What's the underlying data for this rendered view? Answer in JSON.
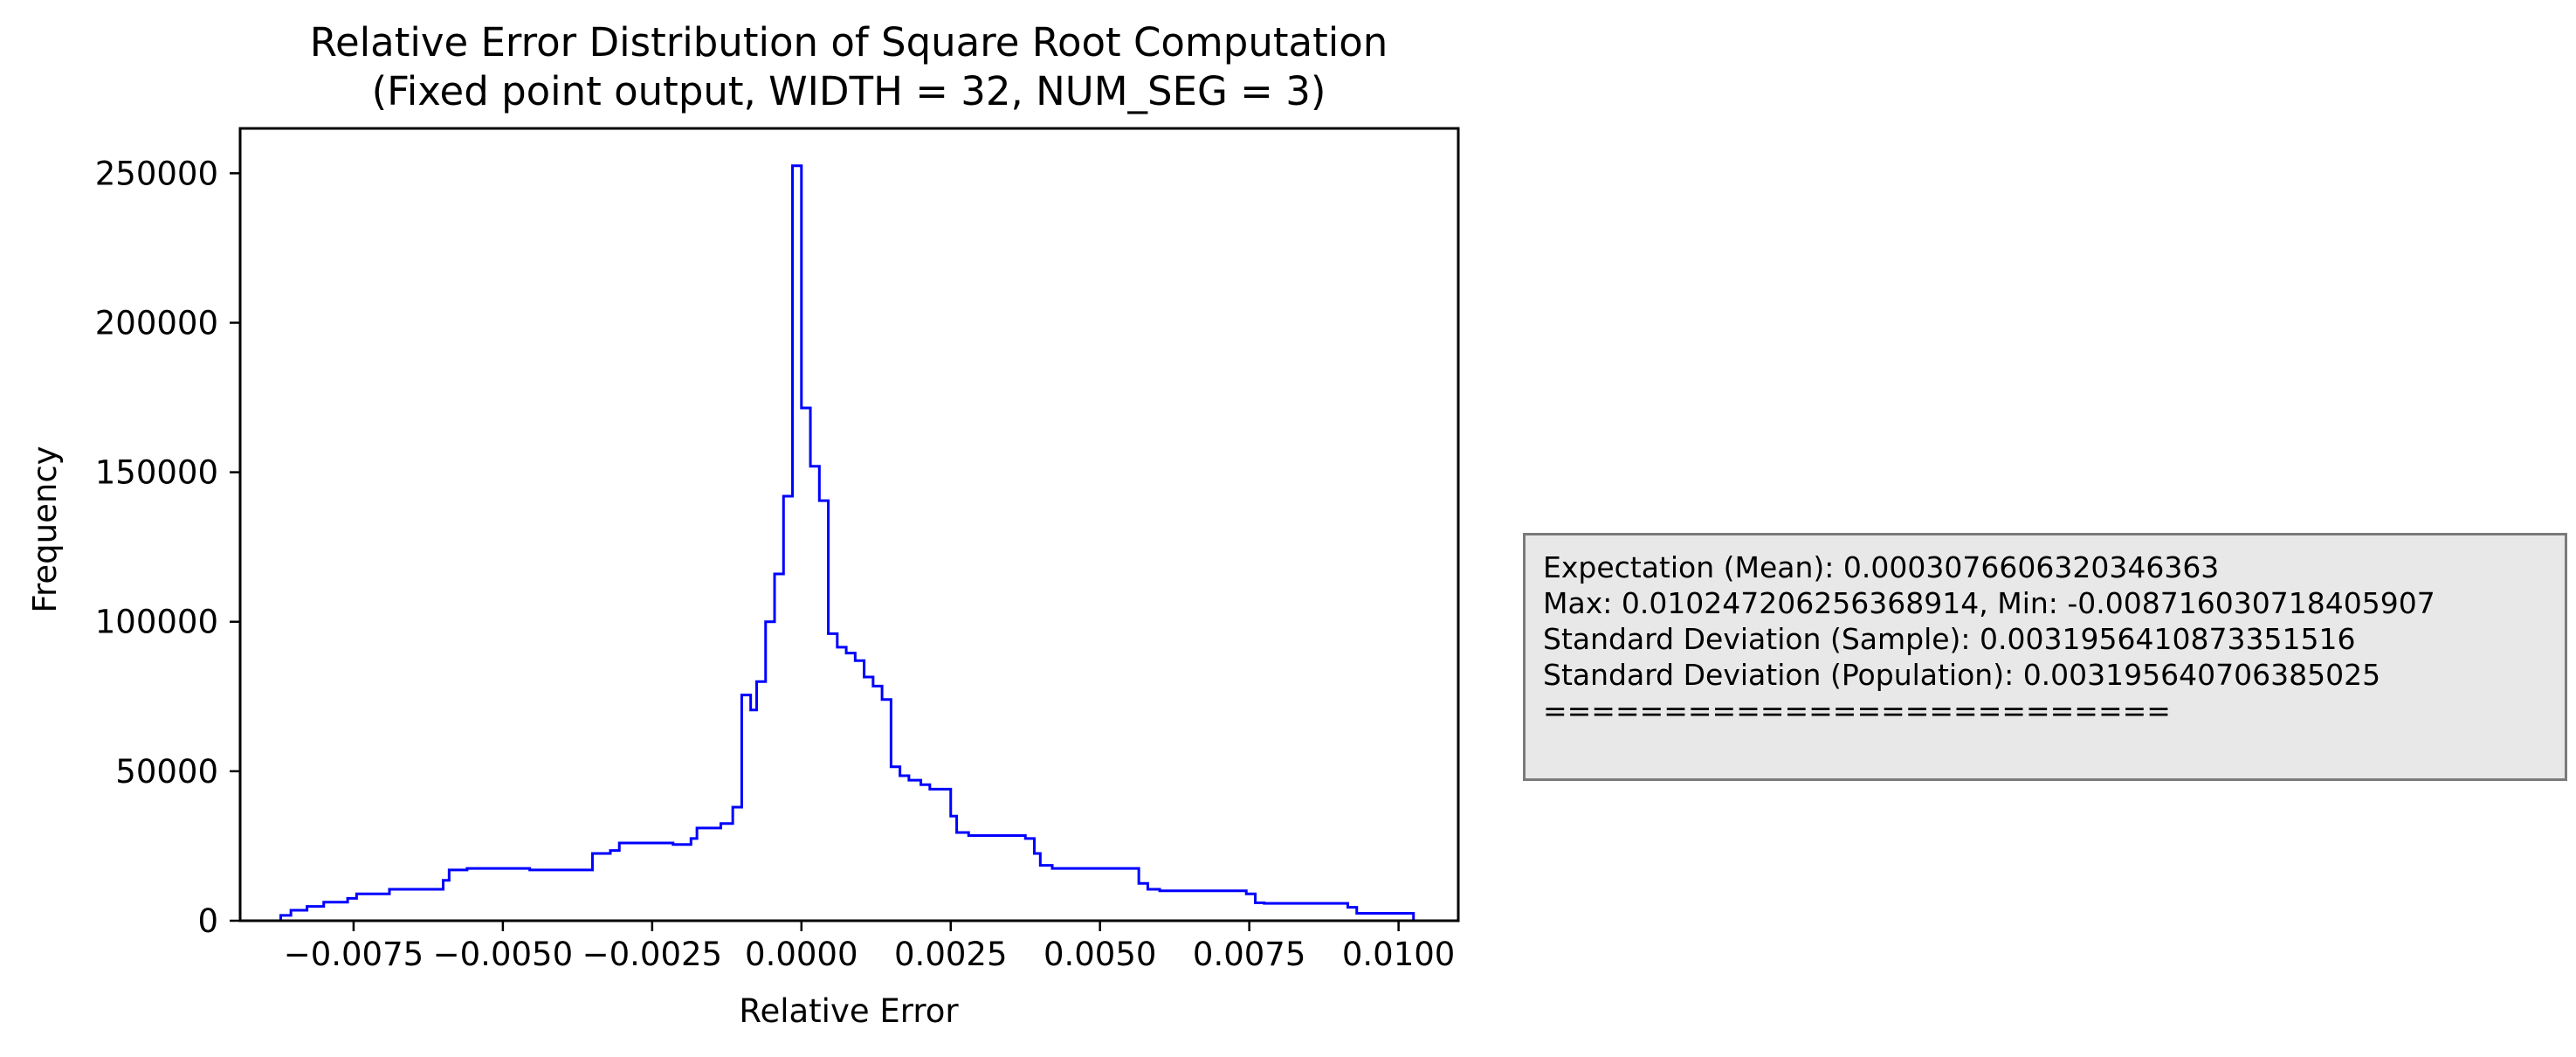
{
  "chart_data": {
    "type": "histogram",
    "title": "Relative Error Distribution of Square Root Computation",
    "subtitle": "(Fixed point output, WIDTH = 32, NUM_SEG = 3)",
    "xlabel": "Relative Error",
    "ylabel": "Frequency",
    "xlim": [
      -0.0094,
      0.011
    ],
    "ylim": [
      0,
      265000
    ],
    "x_ticks": [
      {
        "value": -0.0075,
        "label": "−0.0075"
      },
      {
        "value": -0.005,
        "label": "−0.0050"
      },
      {
        "value": -0.0025,
        "label": "−0.0025"
      },
      {
        "value": 0.0,
        "label": "0.0000"
      },
      {
        "value": 0.0025,
        "label": "0.0025"
      },
      {
        "value": 0.005,
        "label": "0.0050"
      },
      {
        "value": 0.0075,
        "label": "0.0075"
      },
      {
        "value": 0.01,
        "label": "0.0100"
      }
    ],
    "y_ticks": [
      {
        "value": 0,
        "label": "0"
      },
      {
        "value": 50000,
        "label": "50000"
      },
      {
        "value": 100000,
        "label": "100000"
      },
      {
        "value": 150000,
        "label": "150000"
      },
      {
        "value": 200000,
        "label": "200000"
      },
      {
        "value": 250000,
        "label": "250000"
      }
    ],
    "grid": false,
    "series": [
      {
        "color": "#0000ff",
        "style": "step",
        "bins": [
          [
            -0.00872,
            -0.00855,
            1800
          ],
          [
            -0.00855,
            -0.00828,
            3500
          ],
          [
            -0.00828,
            -0.008,
            4800
          ],
          [
            -0.008,
            -0.0076,
            6200
          ],
          [
            -0.0076,
            -0.00745,
            7500
          ],
          [
            -0.00745,
            -0.0069,
            9000
          ],
          [
            -0.0069,
            -0.006,
            10500
          ],
          [
            -0.006,
            -0.0059,
            13500
          ],
          [
            -0.0059,
            -0.0056,
            17000
          ],
          [
            -0.0056,
            -0.00455,
            17500
          ],
          [
            -0.00455,
            -0.0035,
            17000
          ],
          [
            -0.0035,
            -0.0032,
            22500
          ],
          [
            -0.0032,
            -0.00305,
            23500
          ],
          [
            -0.00305,
            -0.00215,
            26000
          ],
          [
            -0.00215,
            -0.00185,
            25500
          ],
          [
            -0.00185,
            -0.00175,
            27500
          ],
          [
            -0.00175,
            -0.00135,
            31000
          ],
          [
            -0.00135,
            -0.00115,
            32500
          ],
          [
            -0.00115,
            -0.001,
            38000
          ],
          [
            -0.001,
            -0.00085,
            75500
          ],
          [
            -0.00085,
            -0.00075,
            70500
          ],
          [
            -0.00075,
            -0.0006,
            80000
          ],
          [
            -0.0006,
            -0.00045,
            100000
          ],
          [
            -0.00045,
            -0.0003,
            116000
          ],
          [
            -0.0003,
            -0.00015,
            142000
          ],
          [
            -0.00015,
            0.0,
            252500
          ],
          [
            0.0,
            0.00015,
            171500
          ],
          [
            0.00015,
            0.0003,
            152000
          ],
          [
            0.0003,
            0.00045,
            140500
          ],
          [
            0.00045,
            0.0006,
            96000
          ],
          [
            0.0006,
            0.00075,
            91500
          ],
          [
            0.00075,
            0.0009,
            89500
          ],
          [
            0.0009,
            0.00105,
            87000
          ],
          [
            0.00105,
            0.0012,
            81500
          ],
          [
            0.0012,
            0.00135,
            78500
          ],
          [
            0.00135,
            0.0015,
            74000
          ],
          [
            0.0015,
            0.00165,
            51500
          ],
          [
            0.00165,
            0.0018,
            48500
          ],
          [
            0.0018,
            0.002,
            47000
          ],
          [
            0.002,
            0.00215,
            45500
          ],
          [
            0.00215,
            0.0025,
            44000
          ],
          [
            0.0025,
            0.0026,
            35000
          ],
          [
            0.0026,
            0.0028,
            29500
          ],
          [
            0.0028,
            0.00375,
            28500
          ],
          [
            0.00375,
            0.0039,
            27500
          ],
          [
            0.0039,
            0.004,
            22500
          ],
          [
            0.004,
            0.0042,
            18500
          ],
          [
            0.0042,
            0.00565,
            17500
          ],
          [
            0.00565,
            0.0058,
            12500
          ],
          [
            0.0058,
            0.006,
            10500
          ],
          [
            0.006,
            0.00745,
            10000
          ],
          [
            0.00745,
            0.0076,
            9000
          ],
          [
            0.0076,
            0.00775,
            6000
          ],
          [
            0.00775,
            0.00915,
            5800
          ],
          [
            0.00915,
            0.0093,
            4500
          ],
          [
            0.0093,
            0.01025,
            2500
          ]
        ]
      }
    ]
  },
  "stats": {
    "lines": [
      "Expectation (Mean): 0.0003076606320346363",
      "Max: 0.010247206256368914, Min: -0.008716030718405907",
      "Standard Deviation (Sample): 0.0031956410873351516",
      "Standard Deviation (Population): 0.003195640706385025",
      "=========================="
    ]
  }
}
